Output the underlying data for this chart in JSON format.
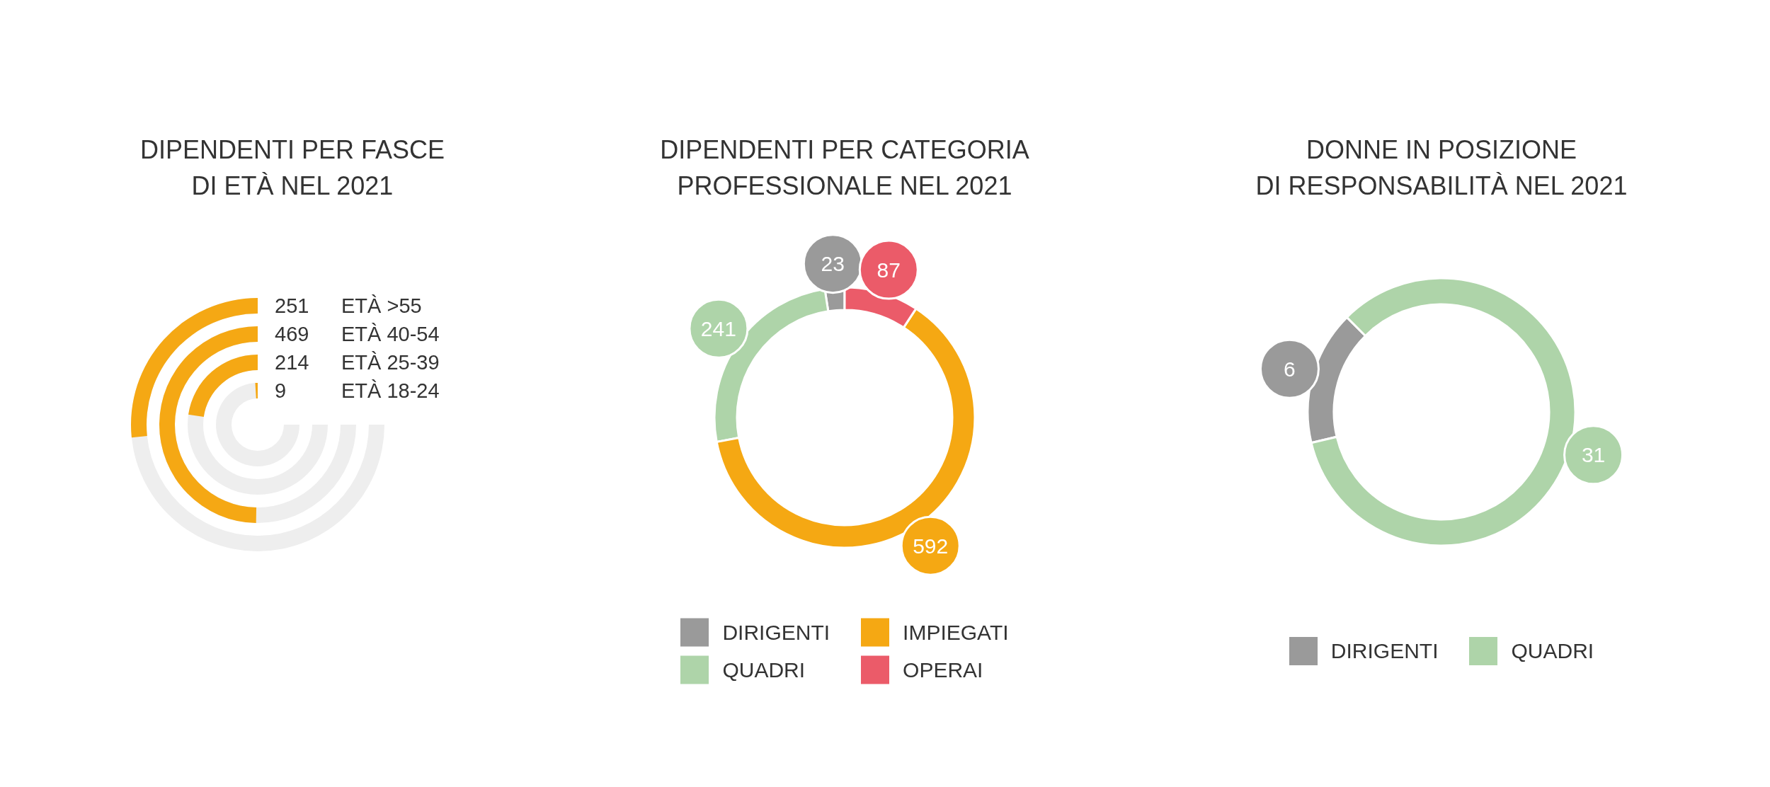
{
  "chart_data": [
    {
      "type": "other",
      "title": "DIPENDENTI PER FASCE\nDI ETÀ NEL 2021",
      "categories": [
        "ETÀ >55",
        "ETÀ 40-54",
        "ETÀ 25-39",
        "ETÀ 18-24"
      ],
      "values": [
        251,
        469,
        214,
        9
      ],
      "color": "#f5a814",
      "data_labels": true
    },
    {
      "type": "donut",
      "title": "DIPENDENTI PER CATEGORIA\nPROFESSIONALE NEL 2021",
      "categories": [
        "DIRIGENTI",
        "QUADRI",
        "IMPIEGATI",
        "OPERAI"
      ],
      "values": [
        23,
        241,
        592,
        87
      ],
      "colors": [
        "#9a9a9a",
        "#aed4a9",
        "#f5a813",
        "#eb5b69"
      ],
      "data_labels": true,
      "legend": "bottom"
    },
    {
      "type": "donut",
      "title": "DONNE IN POSIZIONE\nDI RESPONSABILITÀ NEL 2021",
      "categories": [
        "DIRIGENTI",
        "QUADRI"
      ],
      "values": [
        6,
        31
      ],
      "colors": [
        "#9a9a9a",
        "#aed4a9"
      ],
      "data_labels": true,
      "legend": "bottom"
    }
  ]
}
